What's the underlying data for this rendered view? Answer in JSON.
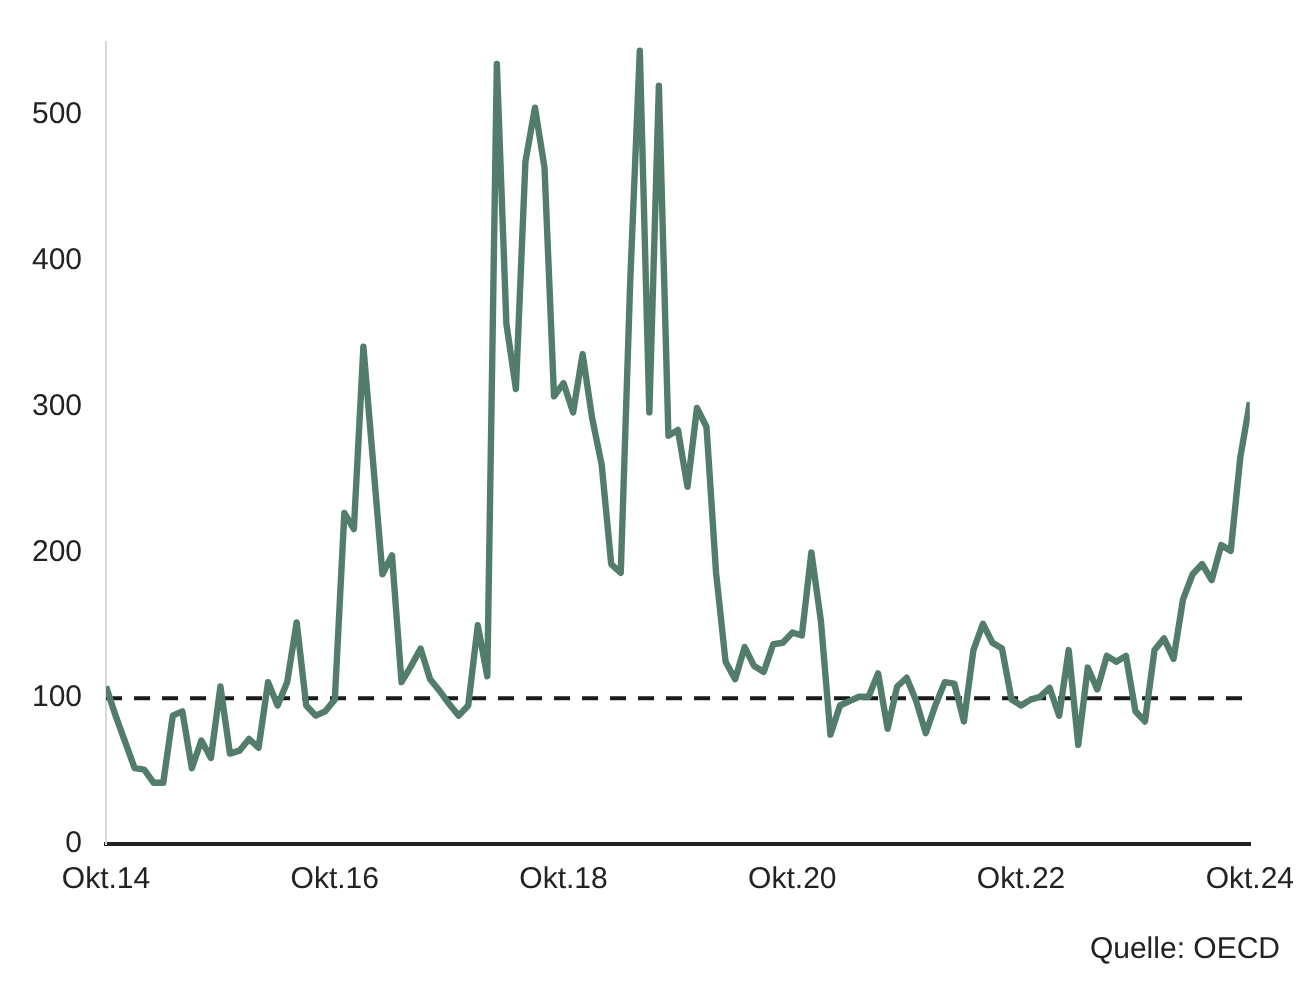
{
  "chart_data": {
    "type": "line",
    "x": [
      "2014-10",
      "2014-11",
      "2014-12",
      "2015-01",
      "2015-02",
      "2015-03",
      "2015-04",
      "2015-05",
      "2015-06",
      "2015-07",
      "2015-08",
      "2015-09",
      "2015-10",
      "2015-11",
      "2015-12",
      "2016-01",
      "2016-02",
      "2016-03",
      "2016-04",
      "2016-05",
      "2016-06",
      "2016-07",
      "2016-08",
      "2016-09",
      "2016-10",
      "2016-11",
      "2016-12",
      "2017-01",
      "2017-02",
      "2017-03",
      "2017-04",
      "2017-05",
      "2017-06",
      "2017-07",
      "2017-08",
      "2017-09",
      "2017-10",
      "2017-11",
      "2017-12",
      "2018-01",
      "2018-02",
      "2018-03",
      "2018-04",
      "2018-05",
      "2018-06",
      "2018-07",
      "2018-08",
      "2018-09",
      "2018-10",
      "2018-11",
      "2018-12",
      "2019-01",
      "2019-02",
      "2019-03",
      "2019-04",
      "2019-05",
      "2019-06",
      "2019-07",
      "2019-08",
      "2019-09",
      "2019-10",
      "2019-11",
      "2019-12",
      "2020-01",
      "2020-02",
      "2020-03",
      "2020-04",
      "2020-05",
      "2020-06",
      "2020-07",
      "2020-08",
      "2020-09",
      "2020-10",
      "2020-11",
      "2020-12",
      "2021-01",
      "2021-02",
      "2021-03",
      "2021-04",
      "2021-05",
      "2021-06",
      "2021-07",
      "2021-08",
      "2021-09",
      "2021-10",
      "2021-11",
      "2021-12",
      "2022-01",
      "2022-02",
      "2022-03",
      "2022-04",
      "2022-05",
      "2022-06",
      "2022-07",
      "2022-08",
      "2022-09",
      "2022-10",
      "2022-11",
      "2022-12",
      "2023-01",
      "2023-02",
      "2023-03",
      "2023-04",
      "2023-05",
      "2023-06",
      "2023-07",
      "2023-08",
      "2023-09",
      "2023-10",
      "2023-11",
      "2023-12",
      "2024-01",
      "2024-02",
      "2024-03",
      "2024-04",
      "2024-05",
      "2024-06",
      "2024-07",
      "2024-08",
      "2024-09",
      "2024-10"
    ],
    "series": [
      {
        "color": "#537d6b",
        "values": [
          108,
          88,
          70,
          52,
          51,
          42,
          42,
          88,
          91,
          52,
          71,
          59,
          108,
          62,
          64,
          72,
          66,
          111,
          95,
          111,
          152,
          95,
          88,
          91,
          99,
          227,
          216,
          341,
          263,
          185,
          198,
          111,
          122,
          134,
          113,
          105,
          96,
          88,
          95,
          150,
          115,
          535,
          357,
          312,
          468,
          505,
          464,
          307,
          316,
          296,
          336,
          292,
          260,
          192,
          186,
          387,
          544,
          296,
          520,
          280,
          284,
          245,
          299,
          286,
          186,
          125,
          113,
          135,
          122,
          118,
          137,
          138,
          145,
          143,
          200,
          153,
          75,
          95,
          98,
          101,
          101,
          117,
          79,
          108,
          114,
          98,
          76,
          95,
          111,
          110,
          84,
          133,
          151,
          138,
          134,
          99,
          95,
          99,
          101,
          107,
          88,
          133,
          68,
          121,
          106,
          129,
          125,
          129,
          91,
          84,
          133,
          141,
          127,
          168,
          185,
          192,
          181,
          205,
          201,
          265,
          303
        ]
      }
    ],
    "xlim": [
      "2014-10",
      "2024-10"
    ],
    "xticks": [
      {
        "value": "2014-10",
        "label": "Okt.14"
      },
      {
        "value": "2016-10",
        "label": "Okt.16"
      },
      {
        "value": "2018-10",
        "label": "Okt.18"
      },
      {
        "value": "2020-10",
        "label": "Okt.20"
      },
      {
        "value": "2022-10",
        "label": "Okt.22"
      },
      {
        "value": "2024-10",
        "label": "Okt.24"
      }
    ],
    "ylim": [
      0,
      550
    ],
    "yticks": [
      0,
      100,
      200,
      300,
      400,
      500
    ],
    "grid": false,
    "marker": "none",
    "line_style": "solid",
    "ref_lines": [
      {
        "axis": "y",
        "value": 100,
        "color": "#1a1a1a",
        "line_style": "dashed"
      }
    ],
    "annotations": [
      "Quelle: OECD"
    ]
  }
}
